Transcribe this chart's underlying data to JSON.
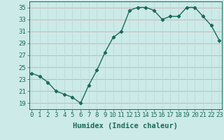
{
  "x": [
    0,
    1,
    2,
    3,
    4,
    5,
    6,
    7,
    8,
    9,
    10,
    11,
    12,
    13,
    14,
    15,
    16,
    17,
    18,
    19,
    20,
    21,
    22,
    23
  ],
  "y": [
    24.0,
    23.5,
    22.5,
    21.0,
    20.5,
    20.0,
    19.0,
    22.0,
    24.5,
    27.5,
    30.0,
    31.0,
    34.5,
    35.0,
    35.0,
    34.5,
    33.0,
    33.5,
    33.5,
    35.0,
    35.0,
    33.5,
    32.0,
    29.5
  ],
  "line_color": "#1a6b5a",
  "marker": "D",
  "marker_size": 2.2,
  "line_width": 1.0,
  "bg_color": "#cceae7",
  "grid_color_h": "#c8a0a0",
  "grid_color_v": "#b8d8d5",
  "xlabel": "Humidex (Indice chaleur)",
  "xlabel_fontsize": 7.5,
  "tick_fontsize": 6.5,
  "ylim": [
    18,
    36
  ],
  "yticks": [
    19,
    21,
    23,
    25,
    27,
    29,
    31,
    33,
    35
  ],
  "xticks": [
    0,
    1,
    2,
    3,
    4,
    5,
    6,
    7,
    8,
    9,
    10,
    11,
    12,
    13,
    14,
    15,
    16,
    17,
    18,
    19,
    20,
    21,
    22,
    23
  ],
  "xlim": [
    -0.3,
    23.3
  ]
}
